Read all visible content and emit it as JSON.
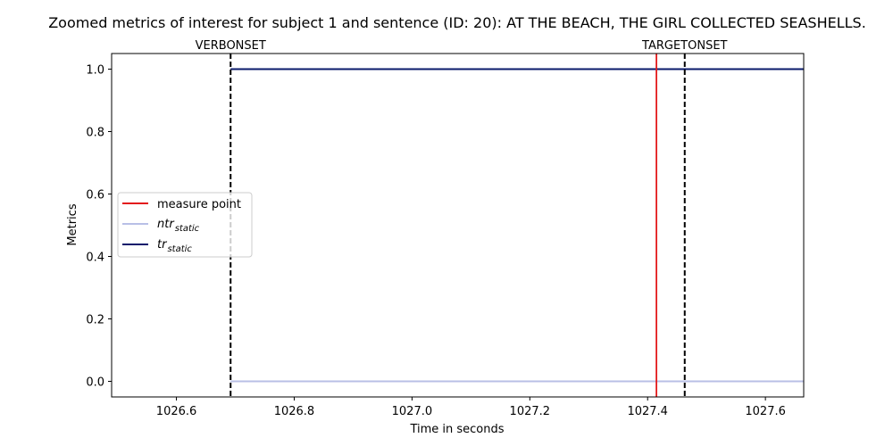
{
  "chart_data": {
    "type": "line",
    "title": "Zoomed metrics of interest for subject 1 and sentence (ID: 20): AT THE BEACH, THE GIRL COLLECTED SEASHELLS.",
    "xlabel": "Time in seconds",
    "ylabel": "Metrics",
    "xlim": [
      1026.49,
      1027.665
    ],
    "ylim": [
      -0.05,
      1.05
    ],
    "x_ticks": [
      1026.6,
      1026.8,
      1027.0,
      1027.2,
      1027.4,
      1027.6
    ],
    "x_tick_labels": [
      "1026.6",
      "1026.8",
      "1027.0",
      "1027.2",
      "1027.4",
      "1027.6"
    ],
    "y_ticks": [
      0.0,
      0.2,
      0.4,
      0.6,
      0.8,
      1.0
    ],
    "y_tick_labels": [
      "0.0",
      "0.2",
      "0.4",
      "0.6",
      "0.8",
      "1.0"
    ],
    "grid": false,
    "legend_position": "center-left",
    "series": [
      {
        "name": "ntr_static",
        "legend_base": "ntr",
        "legend_sub": "static",
        "color": "#b8bfe6",
        "x": [
          1026.692,
          1027.665
        ],
        "y": [
          0.0,
          0.0
        ]
      },
      {
        "name": "tr_static",
        "legend_base": "tr",
        "legend_sub": "static",
        "color": "#0a1a6b",
        "x": [
          1026.692,
          1027.665
        ],
        "y": [
          1.0,
          1.0
        ]
      }
    ],
    "vlines": [
      {
        "name": "measure point",
        "x": 1027.415,
        "color": "#e31a1c",
        "style": "solid",
        "in_legend": true
      },
      {
        "name": "VERBONSET",
        "x": 1026.692,
        "color": "#000000",
        "style": "dashed",
        "in_legend": false
      },
      {
        "name": "TARGETONSET",
        "x": 1027.463,
        "color": "#000000",
        "style": "dashed",
        "in_legend": false
      }
    ],
    "annotations": [
      "VERBONSET",
      "TARGETONSET"
    ]
  }
}
